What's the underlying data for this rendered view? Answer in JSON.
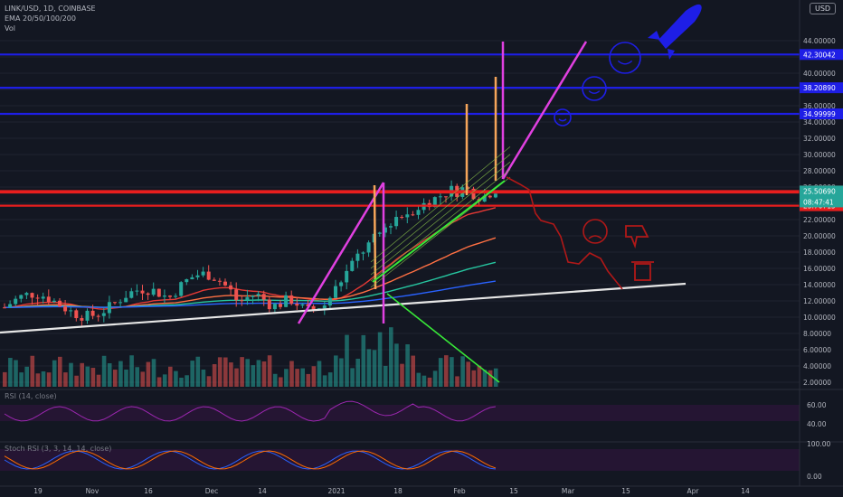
{
  "header": {
    "symbol_line": "LINK/USD, 1D, COINBASE",
    "ema_line": "EMA 20/50/100/200",
    "vol_line": "Vol"
  },
  "currency_button": "USD",
  "rsi_label": "RSI (14, close)",
  "stoch_label": "Stoch RSI (3, 3, 14, 14, close)",
  "countdown": "08:47:41",
  "colors": {
    "background": "#131722",
    "up": "#26a69a",
    "down": "#ef5350",
    "blue_level": "#1e1ee6",
    "red_level": "#e81e1e",
    "magenta": "#e040e0",
    "orange": "#f5a55a",
    "green_line": "#38e838",
    "trendline": "#e6e6e6",
    "rsi": "#9c27b0"
  },
  "chart_data": {
    "type": "candlestick",
    "price_ticks": [
      "2.00000",
      "4.00000",
      "6.00000",
      "8.00000",
      "10.00000",
      "12.00000",
      "14.00000",
      "16.00000",
      "18.00000",
      "20.00000",
      "22.00000",
      "24.00000",
      "26.00000",
      "28.00000",
      "30.00000",
      "32.00000",
      "34.00000",
      "36.00000",
      "38.00000",
      "40.00000",
      "42.00000",
      "44.00000"
    ],
    "x_ticks": [
      "19",
      "Nov",
      "16",
      "Dec",
      "14",
      "2021",
      "18",
      "Feb",
      "15",
      "Mar",
      "15",
      "Apr",
      "14"
    ],
    "rsi_ticks": [
      "60.00",
      "40.00"
    ],
    "stoch_ticks": [
      "100.00",
      "0.00"
    ],
    "levels": [
      {
        "label": "42.30042",
        "value": 42.30042,
        "color": "#1e1ee6"
      },
      {
        "label": "38.20890",
        "value": 38.2089,
        "color": "#1e1ee6"
      },
      {
        "label": "34.99999",
        "value": 34.99999,
        "color": "#1e1ee6"
      },
      {
        "label": "25.50690",
        "value": 25.5069,
        "color": "#e81e1e"
      },
      {
        "label": "25.33654",
        "value": 25.33654,
        "color": "#e81e1e"
      },
      {
        "label": "23.70715",
        "value": 23.70715,
        "color": "#e81e1e"
      }
    ],
    "last_price": {
      "label": "25.50690",
      "value": 25.5069,
      "color": "#26a69a"
    },
    "volume_label": "Vol"
  }
}
